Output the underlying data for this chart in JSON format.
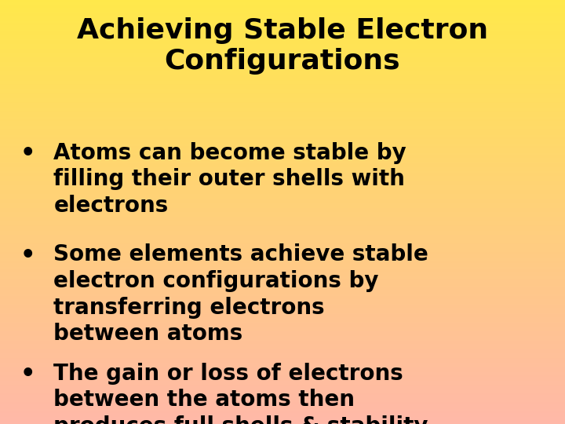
{
  "title_line1": "Achieving Stable Electron",
  "title_line2": "Configurations",
  "bullets": [
    "Atoms can become stable by\nfilling their outer shells with\nelectrons",
    "Some elements achieve stable\nelectron configurations by\ntransferring electrons\nbetween atoms",
    "The gain or loss of electrons\nbetween the atoms then\nproduces full shells & stability"
  ],
  "bg_color_top": "#FFE84B",
  "bg_color_bottom": "#FFB8A8",
  "text_color": "#000000",
  "title_fontsize": 26,
  "bullet_fontsize": 20,
  "fig_width": 7.2,
  "fig_height": 5.4,
  "dpi": 100
}
